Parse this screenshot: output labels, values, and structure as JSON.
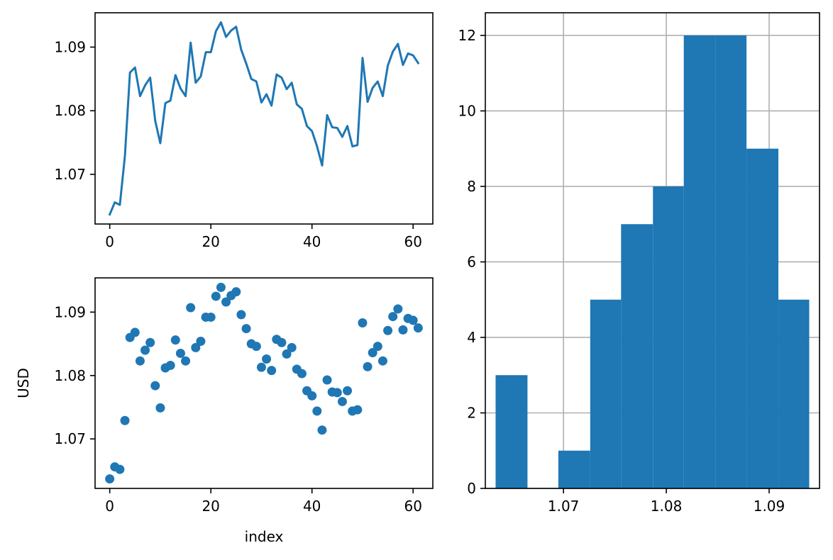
{
  "chart_data": [
    {
      "type": "line",
      "x": [
        0,
        1,
        2,
        3,
        4,
        5,
        6,
        7,
        8,
        9,
        10,
        11,
        12,
        13,
        14,
        15,
        16,
        17,
        18,
        19,
        20,
        21,
        22,
        23,
        24,
        25,
        26,
        27,
        28,
        29,
        30,
        31,
        32,
        33,
        34,
        35,
        36,
        37,
        38,
        39,
        40,
        41,
        42,
        43,
        44,
        45,
        46,
        47,
        48,
        49,
        50,
        51,
        52,
        53,
        54,
        55,
        56,
        57,
        58,
        59,
        60,
        61
      ],
      "series": [
        {
          "values": [
            1.0637,
            1.0656,
            1.0652,
            1.0729,
            1.086,
            1.0868,
            1.0823,
            1.084,
            1.0852,
            1.0784,
            1.0749,
            1.0812,
            1.0816,
            1.0856,
            1.0835,
            1.0823,
            1.0907,
            1.0844,
            1.0854,
            1.0892,
            1.0892,
            1.0925,
            1.0939,
            1.0916,
            1.0926,
            1.0932,
            1.0896,
            1.0874,
            1.085,
            1.0846,
            1.0813,
            1.0826,
            1.0808,
            1.0857,
            1.0852,
            1.0834,
            1.0844,
            1.081,
            1.0803,
            1.0776,
            1.0768,
            1.0744,
            1.0714,
            1.0793,
            1.0774,
            1.0773,
            1.0759,
            1.0776,
            1.0744,
            1.0746,
            1.0883,
            1.0814,
            1.0836,
            1.0846,
            1.0823,
            1.0871,
            1.0893,
            1.0905,
            1.0872,
            1.089,
            1.0887,
            1.0875
          ],
          "color": "#1f77b4"
        }
      ],
      "xlim": [
        -2.9,
        63.9
      ],
      "ylim": [
        1.0622,
        1.0954
      ],
      "xticks": [
        0,
        20,
        40,
        60
      ],
      "yticks": [
        1.07,
        1.08,
        1.09
      ],
      "xtick_labels": [
        "0",
        "20",
        "40",
        "60"
      ],
      "ytick_labels": [
        "1.07",
        "1.08",
        "1.09"
      ],
      "xlabel": "",
      "ylabel": "",
      "grid": false
    },
    {
      "type": "scatter",
      "x": [
        0,
        1,
        2,
        3,
        4,
        5,
        6,
        7,
        8,
        9,
        10,
        11,
        12,
        13,
        14,
        15,
        16,
        17,
        18,
        19,
        20,
        21,
        22,
        23,
        24,
        25,
        26,
        27,
        28,
        29,
        30,
        31,
        32,
        33,
        34,
        35,
        36,
        37,
        38,
        39,
        40,
        41,
        42,
        43,
        44,
        45,
        46,
        47,
        48,
        49,
        50,
        51,
        52,
        53,
        54,
        55,
        56,
        57,
        58,
        59,
        60,
        61
      ],
      "series": [
        {
          "values": [
            1.0637,
            1.0656,
            1.0652,
            1.0729,
            1.086,
            1.0868,
            1.0823,
            1.084,
            1.0852,
            1.0784,
            1.0749,
            1.0812,
            1.0816,
            1.0856,
            1.0835,
            1.0823,
            1.0907,
            1.0844,
            1.0854,
            1.0892,
            1.0892,
            1.0925,
            1.0939,
            1.0916,
            1.0926,
            1.0932,
            1.0896,
            1.0874,
            1.085,
            1.0846,
            1.0813,
            1.0826,
            1.0808,
            1.0857,
            1.0852,
            1.0834,
            1.0844,
            1.081,
            1.0803,
            1.0776,
            1.0768,
            1.0744,
            1.0714,
            1.0793,
            1.0774,
            1.0773,
            1.0759,
            1.0776,
            1.0744,
            1.0746,
            1.0883,
            1.0814,
            1.0836,
            1.0846,
            1.0823,
            1.0871,
            1.0893,
            1.0905,
            1.0872,
            1.089,
            1.0887,
            1.0875
          ],
          "color": "#1f77b4"
        }
      ],
      "xlim": [
        -2.9,
        63.9
      ],
      "ylim": [
        1.0622,
        1.0954
      ],
      "xticks": [
        0,
        20,
        40,
        60
      ],
      "yticks": [
        1.07,
        1.08,
        1.09
      ],
      "xtick_labels": [
        "0",
        "20",
        "40",
        "60"
      ],
      "ytick_labels": [
        "1.07",
        "1.08",
        "1.09"
      ],
      "xlabel": "index",
      "ylabel": "USD",
      "grid": false
    },
    {
      "type": "bar",
      "subtype": "histogram",
      "bin_edges": [
        1.0634,
        1.0665,
        1.0695,
        1.0726,
        1.0756,
        1.0787,
        1.0817,
        1.0848,
        1.0878,
        1.0909,
        1.0939
      ],
      "counts": [
        3,
        0,
        1,
        5,
        7,
        8,
        12,
        12,
        9,
        5
      ],
      "color": "#1f77b4",
      "xlim": [
        1.0624,
        1.0949
      ],
      "ylim": [
        0,
        12.6
      ],
      "xticks": [
        1.07,
        1.08,
        1.09
      ],
      "yticks": [
        0,
        2,
        4,
        6,
        8,
        10,
        12
      ],
      "xtick_labels": [
        "1.07",
        "1.08",
        "1.09"
      ],
      "ytick_labels": [
        "0",
        "2",
        "4",
        "6",
        "8",
        "10",
        "12"
      ],
      "xlabel": "",
      "ylabel": "",
      "grid": true
    }
  ]
}
